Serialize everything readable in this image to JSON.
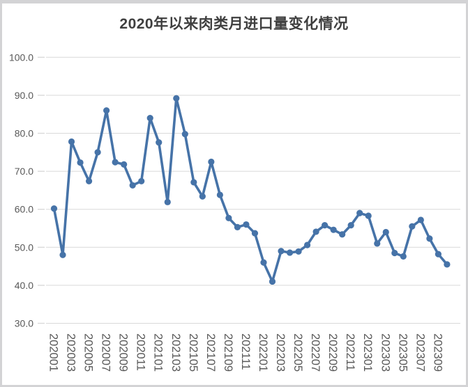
{
  "chart_data": {
    "type": "line",
    "title": "2020年以来肉类月进口量变化情况",
    "x": [
      "202001",
      "202002",
      "202003",
      "202004",
      "202005",
      "202006",
      "202007",
      "202008",
      "202009",
      "202010",
      "202011",
      "202012",
      "202101",
      "202102",
      "202103",
      "202104",
      "202105",
      "202106",
      "202107",
      "202108",
      "202109",
      "202110",
      "202111",
      "202112",
      "202201",
      "202202",
      "202203",
      "202204",
      "202205",
      "202206",
      "202207",
      "202208",
      "202209",
      "202210",
      "202211",
      "202212",
      "202301",
      "202302",
      "202303",
      "202304",
      "202305",
      "202306",
      "202307",
      "202308",
      "202309",
      "202310"
    ],
    "values": [
      60.2,
      48.0,
      77.8,
      72.3,
      67.4,
      75.0,
      86.0,
      72.4,
      71.8,
      66.3,
      67.4,
      84.0,
      77.6,
      61.9,
      89.2,
      79.8,
      67.1,
      63.4,
      72.5,
      63.8,
      57.7,
      55.3,
      56.0,
      53.7,
      46.0,
      41.0,
      49.0,
      48.6,
      48.9,
      50.6,
      54.1,
      55.8,
      54.6,
      53.4,
      55.8,
      59.0,
      58.3,
      51.0,
      54.0,
      48.5,
      47.6,
      55.5,
      57.2,
      52.3,
      48.2,
      45.5
    ],
    "xtick_labels": [
      "202001",
      "202003",
      "202005",
      "202007",
      "202009",
      "202011",
      "202101",
      "202103",
      "202105",
      "202107",
      "202109",
      "202111",
      "202201",
      "202203",
      "202205",
      "202207",
      "202209",
      "202211",
      "202301",
      "202303",
      "202305",
      "202307",
      "202309"
    ],
    "xtick_shown_every": 2,
    "ytick_labels": [
      "100.0",
      "90.0",
      "80.0",
      "70.0",
      "60.0",
      "50.0",
      "40.0",
      "30.0"
    ],
    "ylim": [
      30,
      100
    ],
    "ytick_step": 10,
    "xlabel": "",
    "ylabel": "",
    "grid": "horizontal",
    "legend": "none",
    "marker": "filled-circle",
    "colors": {
      "series": "#4673A8",
      "grid": "#D9D9D9",
      "axis_label": "#595959",
      "title": "#3F3F3F",
      "frame": "#D3D3D5",
      "background": "#FFFFFF"
    }
  }
}
